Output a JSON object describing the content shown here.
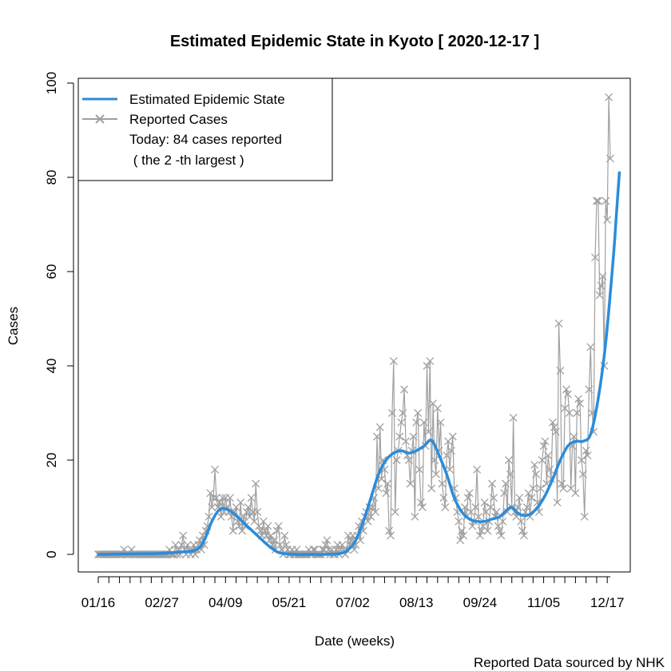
{
  "chart_data": {
    "type": "line",
    "title": "Estimated Epidemic State in Kyoto [ 2020-12-17 ]",
    "xlabel": "Date (weeks)",
    "ylabel": "Cases",
    "source_note": "Reported Data sourced by NHK",
    "ylim": [
      0,
      100
    ],
    "y_ticks": [
      0,
      20,
      40,
      60,
      80,
      100
    ],
    "x_tick_labels": [
      "01/16",
      "02/27",
      "04/09",
      "05/21",
      "07/02",
      "08/13",
      "09/24",
      "11/05",
      "12/17"
    ],
    "legend": {
      "position": "top-left",
      "entries": [
        "Estimated Epidemic State",
        "Reported Cases"
      ],
      "note_line1": "Today: 84 cases reported",
      "note_line2": " ( the 2 -th largest )"
    },
    "colors": {
      "estimated": "#2b8cdb",
      "reported": "#a0a0a0"
    },
    "reported_series": {
      "name": "Reported Cases",
      "start_day": 0,
      "values": [
        0,
        0,
        0,
        0,
        0,
        0,
        0,
        0,
        0,
        0,
        0,
        0,
        0,
        0,
        0,
        0,
        0,
        1,
        0,
        0,
        0,
        0,
        1,
        0,
        0,
        0,
        0,
        0,
        0,
        0,
        0,
        0,
        0,
        0,
        0,
        0,
        0,
        0,
        0,
        0,
        0,
        0,
        0,
        0,
        0,
        0,
        0,
        1,
        0,
        0,
        0,
        2,
        0,
        1,
        0,
        2,
        4,
        1,
        0,
        2,
        1,
        0,
        1,
        2,
        0,
        1,
        2,
        3,
        1,
        4,
        2,
        5,
        6,
        8,
        13,
        10,
        12,
        18,
        12,
        10,
        11,
        8,
        12,
        9,
        12,
        10,
        9,
        12,
        8,
        5,
        9,
        10,
        7,
        6,
        11,
        5,
        8,
        6,
        9,
        10,
        8,
        12,
        9,
        7,
        15,
        9,
        6,
        5,
        4,
        7,
        5,
        4,
        6,
        3,
        4,
        2,
        3,
        1,
        5,
        6,
        2,
        1,
        0,
        4,
        2,
        1,
        0,
        0,
        1,
        0,
        0,
        1,
        0,
        0,
        0,
        0,
        0,
        0,
        0,
        1,
        0,
        0,
        1,
        1,
        0,
        0,
        0,
        0,
        1,
        1,
        2,
        3,
        1,
        0,
        1,
        0,
        0,
        1,
        2,
        0,
        1,
        2,
        1,
        0,
        1,
        4,
        2,
        3,
        4,
        1,
        2,
        4,
        6,
        3,
        7,
        5,
        8,
        9,
        7,
        10,
        8,
        10,
        12,
        9,
        25,
        14,
        27,
        16,
        20,
        18,
        13,
        15,
        5,
        4,
        30,
        41,
        9,
        20,
        22,
        25,
        28,
        30,
        35,
        24,
        21,
        20,
        15,
        22,
        25,
        8,
        28,
        30,
        18,
        11,
        10,
        28,
        23,
        40,
        26,
        41,
        14,
        32,
        20,
        17,
        31,
        22,
        28,
        15,
        12,
        10,
        21,
        24,
        18,
        22,
        25,
        14,
        12,
        9,
        7,
        3,
        5,
        4,
        10,
        8,
        12,
        13,
        9,
        6,
        7,
        10,
        18,
        8,
        4,
        5,
        6,
        11,
        9,
        5,
        7,
        10,
        15,
        12,
        8,
        9,
        6,
        5,
        4,
        7,
        13,
        15,
        9,
        20,
        17,
        10,
        29,
        9,
        8,
        10,
        12,
        7,
        5,
        4,
        9,
        10,
        13,
        8,
        12,
        14,
        19,
        17,
        11,
        9,
        14,
        20,
        23,
        24,
        15,
        21,
        18,
        16,
        28,
        27,
        26,
        11,
        49,
        39,
        15,
        14,
        31,
        35,
        34,
        30,
        14,
        23,
        25,
        13,
        30,
        33,
        32,
        20,
        17,
        8,
        22,
        21,
        35,
        44,
        30,
        26,
        63,
        75,
        75,
        55,
        57,
        59,
        40,
        75,
        71,
        97,
        84
      ]
    },
    "estimated_series": {
      "name": "Estimated Epidemic State",
      "start_day": 0,
      "knots": [
        [
          0,
          0
        ],
        [
          20,
          0.1
        ],
        [
          40,
          0.2
        ],
        [
          55,
          0.5
        ],
        [
          65,
          1
        ],
        [
          70,
          3
        ],
        [
          75,
          7
        ],
        [
          80,
          9.5
        ],
        [
          85,
          9.6
        ],
        [
          90,
          8.5
        ],
        [
          95,
          7
        ],
        [
          100,
          5.5
        ],
        [
          105,
          4
        ],
        [
          110,
          2.5
        ],
        [
          115,
          1.2
        ],
        [
          120,
          0.3
        ],
        [
          130,
          0
        ],
        [
          140,
          0
        ],
        [
          150,
          0
        ],
        [
          160,
          0.2
        ],
        [
          165,
          1
        ],
        [
          170,
          3
        ],
        [
          175,
          7
        ],
        [
          180,
          12
        ],
        [
          185,
          17
        ],
        [
          190,
          20
        ],
        [
          195,
          21.5
        ],
        [
          200,
          22
        ],
        [
          205,
          21.5
        ],
        [
          210,
          22
        ],
        [
          215,
          23
        ],
        [
          220,
          24.2
        ],
        [
          225,
          21
        ],
        [
          230,
          17
        ],
        [
          235,
          12
        ],
        [
          240,
          9
        ],
        [
          245,
          7.5
        ],
        [
          250,
          7
        ],
        [
          255,
          7
        ],
        [
          260,
          7.5
        ],
        [
          265,
          8
        ],
        [
          270,
          9.5
        ],
        [
          273,
          10
        ],
        [
          276,
          9
        ],
        [
          280,
          8.3
        ],
        [
          285,
          8.5
        ],
        [
          290,
          10
        ],
        [
          295,
          12.5
        ],
        [
          300,
          16
        ],
        [
          305,
          20
        ],
        [
          310,
          23
        ],
        [
          315,
          24
        ],
        [
          320,
          24
        ],
        [
          325,
          25.5
        ],
        [
          330,
          33
        ],
        [
          335,
          45
        ],
        [
          340,
          63
        ],
        [
          342,
          72
        ],
        [
          344,
          81
        ]
      ]
    }
  }
}
